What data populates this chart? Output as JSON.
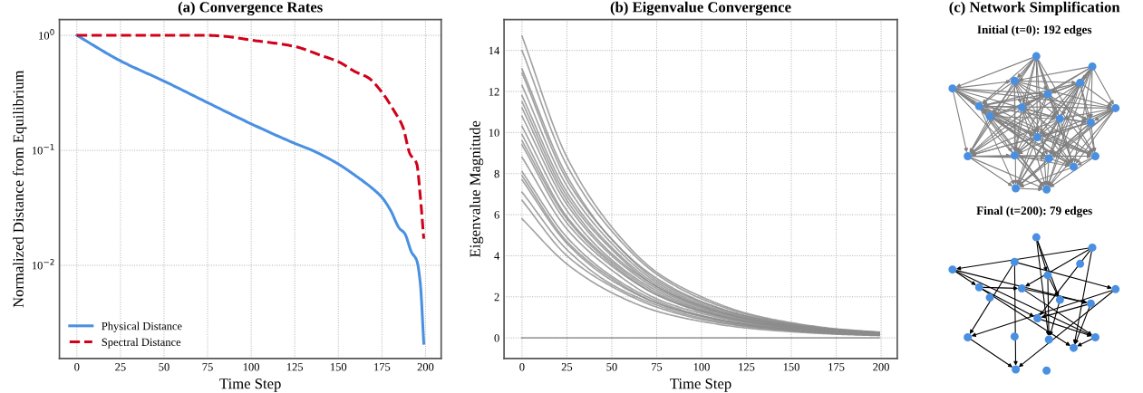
{
  "chart_data": [
    {
      "type": "line",
      "title": "(a) Convergence Rates",
      "xlabel": "Time Step",
      "ylabel": "Normalized Distance from Equilibrium",
      "log": "y",
      "xlim": [
        -10,
        209
      ],
      "xticks": [
        0,
        25,
        50,
        75,
        100,
        125,
        150,
        175,
        200
      ],
      "ylim": [
        0.00155,
        1.37
      ],
      "yticks": [
        {
          "value": 1,
          "label": "10$^{0}$"
        },
        {
          "value": 0.1,
          "label": "10$^{−1}$"
        },
        {
          "value": 0.01,
          "label": "10$^{−2}$"
        }
      ],
      "grid": true,
      "legend": "bottom left",
      "series": [
        {
          "name": "Physical Distance",
          "color": "#4a90e2",
          "line_style": "solid",
          "x": [
            0,
            25,
            50,
            75,
            100,
            125,
            135,
            150,
            160,
            170,
            175,
            180,
            185,
            188,
            192,
            195,
            197,
            199
          ],
          "values": [
            1.0,
            0.6,
            0.4,
            0.26,
            0.17,
            0.115,
            0.1,
            0.076,
            0.06,
            0.046,
            0.039,
            0.03,
            0.021,
            0.019,
            0.013,
            0.011,
            0.007,
            0.0021
          ]
        },
        {
          "name": "Spectral Distance",
          "color": "#d0021b",
          "line_style": "dashed",
          "x": [
            0,
            25,
            50,
            75,
            85,
            100,
            125,
            140,
            150,
            160,
            167,
            175,
            182,
            187,
            191,
            195,
            197,
            199
          ],
          "values": [
            1.0,
            1.0,
            1.0,
            1.0,
            0.98,
            0.91,
            0.8,
            0.67,
            0.59,
            0.48,
            0.43,
            0.32,
            0.22,
            0.16,
            0.094,
            0.076,
            0.04,
            0.017
          ]
        }
      ]
    },
    {
      "type": "line",
      "title": "(b) Eigenvalue Convergence",
      "xlabel": "Time Step",
      "ylabel": "Eigenvalue Magnitude",
      "xlim": [
        -10,
        209
      ],
      "xticks": [
        0,
        25,
        50,
        75,
        100,
        125,
        150,
        175,
        200
      ],
      "ylim": [
        -1,
        15.5
      ],
      "yticks": [
        0,
        2,
        4,
        6,
        8,
        10,
        12,
        14
      ],
      "grid": true,
      "x": [
        0,
        25,
        50,
        75,
        100,
        125,
        150,
        175,
        199
      ],
      "series": [
        {
          "color": "#8c8c8c",
          "values": [
            14.7,
            8.8,
            5.4,
            3.2,
            2.0,
            1.2,
            0.74,
            0.44,
            0.28
          ]
        },
        {
          "color": "#8c8c8c",
          "values": [
            14.0,
            8.4,
            5.2,
            3.1,
            1.9,
            1.15,
            0.7,
            0.42,
            0.27
          ]
        },
        {
          "color": "#8c8c8c",
          "values": [
            13.1,
            7.9,
            4.8,
            2.9,
            1.77,
            1.07,
            0.66,
            0.39,
            0.25
          ]
        },
        {
          "color": "#8c8c8c",
          "values": [
            12.9,
            7.7,
            4.8,
            2.8,
            1.74,
            1.06,
            0.65,
            0.39,
            0.25
          ]
        },
        {
          "color": "#8c8c8c",
          "values": [
            12.3,
            7.4,
            4.6,
            2.7,
            1.66,
            1.01,
            0.62,
            0.37,
            0.23
          ]
        },
        {
          "color": "#8c8c8c",
          "values": [
            11.8,
            7.1,
            4.4,
            2.6,
            1.59,
            0.97,
            0.59,
            0.35,
            0.22
          ]
        },
        {
          "color": "#8c8c8c",
          "values": [
            11.5,
            6.9,
            4.3,
            2.5,
            1.55,
            0.94,
            0.58,
            0.35,
            0.22
          ]
        },
        {
          "color": "#8c8c8c",
          "values": [
            11.2,
            6.7,
            4.1,
            2.5,
            1.51,
            0.92,
            0.56,
            0.34,
            0.21
          ]
        },
        {
          "color": "#8c8c8c",
          "values": [
            10.8,
            6.5,
            4.0,
            2.4,
            1.46,
            0.89,
            0.54,
            0.32,
            0.21
          ]
        },
        {
          "color": "#8c8c8c",
          "values": [
            10.3,
            6.2,
            3.8,
            2.3,
            1.39,
            0.84,
            0.52,
            0.31,
            0.2
          ]
        },
        {
          "color": "#8c8c8c",
          "values": [
            9.9,
            5.9,
            3.7,
            2.2,
            1.34,
            0.81,
            0.5,
            0.3,
            0.19
          ]
        },
        {
          "color": "#8c8c8c",
          "values": [
            9.6,
            5.8,
            3.6,
            2.1,
            1.3,
            0.79,
            0.48,
            0.29,
            0.18
          ]
        },
        {
          "color": "#8c8c8c",
          "values": [
            9.4,
            5.6,
            3.5,
            2.1,
            1.27,
            0.77,
            0.47,
            0.28,
            0.18
          ]
        },
        {
          "color": "#8c8c8c",
          "values": [
            8.8,
            5.3,
            3.3,
            1.9,
            1.19,
            0.72,
            0.44,
            0.26,
            0.17
          ]
        },
        {
          "color": "#8c8c8c",
          "values": [
            8.1,
            4.9,
            3.0,
            1.8,
            1.09,
            0.66,
            0.41,
            0.24,
            0.15
          ]
        },
        {
          "color": "#8c8c8c",
          "values": [
            7.9,
            4.7,
            2.9,
            1.7,
            1.07,
            0.65,
            0.4,
            0.24,
            0.15
          ]
        },
        {
          "color": "#8c8c8c",
          "values": [
            7.7,
            4.6,
            2.8,
            1.7,
            1.04,
            0.63,
            0.39,
            0.23,
            0.15
          ]
        },
        {
          "color": "#8c8c8c",
          "values": [
            7.1,
            4.3,
            2.6,
            1.6,
            0.96,
            0.58,
            0.36,
            0.21,
            0.13
          ]
        },
        {
          "color": "#8c8c8c",
          "values": [
            6.7,
            4.0,
            2.5,
            1.5,
            0.9,
            0.55,
            0.34,
            0.2,
            0.13
          ]
        },
        {
          "color": "#8c8c8c",
          "values": [
            5.8,
            3.6,
            2.2,
            1.3,
            0.8,
            0.48,
            0.3,
            0.18,
            0.11
          ]
        },
        {
          "color": "#8c8c8c",
          "values": [
            0,
            0,
            0,
            0,
            0,
            0,
            0,
            0,
            0
          ]
        }
      ]
    },
    {
      "type": "other",
      "title": "(c) Network Simplification",
      "annotations": [
        "Initial (t=0): 192 edges",
        "Final (t=200): 79 edges"
      ]
    }
  ]
}
